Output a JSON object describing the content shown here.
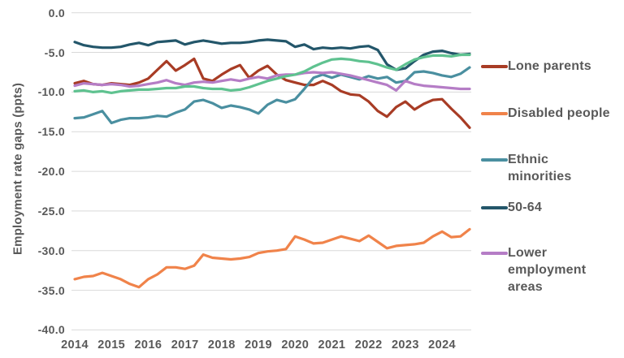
{
  "figure": {
    "y_axis_title": "Employment rate gaps (ppts)",
    "y_tick_labels": [
      "0.0",
      "-5.0",
      "-10.0",
      "-15.0",
      "-20.0",
      "-25.0",
      "-30.0",
      "-35.0",
      "-40.0"
    ],
    "x_tick_labels": [
      "2014",
      "2015",
      "2016",
      "2017",
      "2018",
      "2019",
      "2020",
      "2021",
      "2022",
      "2023",
      "2024"
    ],
    "grid_color": "#d9d9d9",
    "text_color": "#595959",
    "background_color": "#ffffff"
  },
  "legend": [
    {
      "label": "Lone parents",
      "color": "#a83c25"
    },
    {
      "label": "Disabled people",
      "color": "#f0834a"
    },
    {
      "label": "Ethnic minorities",
      "color": "#4a8fa0"
    },
    {
      "label": "50-64",
      "color": "#23566a"
    },
    {
      "label": "Lower employment areas",
      "color": "#b57dc6"
    }
  ],
  "chart_data": {
    "type": "line",
    "title": "",
    "xlabel": "",
    "ylabel": "Employment rate gaps (ppts)",
    "ylim": [
      -40,
      0
    ],
    "y_ticks": [
      0,
      -5,
      -10,
      -15,
      -20,
      -25,
      -30,
      -35,
      -40
    ],
    "grid": "horizontal",
    "legend_position": "right",
    "x_frequency": "quarterly",
    "categories": [
      "2014 Q1",
      "2014 Q2",
      "2014 Q3",
      "2014 Q4",
      "2015 Q1",
      "2015 Q2",
      "2015 Q3",
      "2015 Q4",
      "2016 Q1",
      "2016 Q2",
      "2016 Q3",
      "2016 Q4",
      "2017 Q1",
      "2017 Q2",
      "2017 Q3",
      "2017 Q4",
      "2018 Q1",
      "2018 Q2",
      "2018 Q3",
      "2018 Q4",
      "2019 Q1",
      "2019 Q2",
      "2019 Q3",
      "2019 Q4",
      "2020 Q1",
      "2020 Q2",
      "2020 Q3",
      "2020 Q4",
      "2021 Q1",
      "2021 Q2",
      "2021 Q3",
      "2021 Q4",
      "2022 Q1",
      "2022 Q2",
      "2022 Q3",
      "2022 Q4",
      "2023 Q1",
      "2023 Q2",
      "2023 Q3",
      "2023 Q4",
      "2024 Q1",
      "2024 Q2",
      "2024 Q3",
      "2024 Q4"
    ],
    "x_year_ticks": [
      2014,
      2015,
      2016,
      2017,
      2018,
      2019,
      2020,
      2021,
      2022,
      2023,
      2024
    ],
    "series": [
      {
        "name": "Lone parents",
        "color": "#a83c25",
        "values": [
          -8.9,
          -8.6,
          -9.0,
          -9.1,
          -8.9,
          -9.0,
          -9.1,
          -8.8,
          -8.3,
          -7.2,
          -6.1,
          -7.3,
          -6.6,
          -5.8,
          -8.3,
          -8.6,
          -7.8,
          -7.1,
          -6.6,
          -8.2,
          -7.3,
          -6.7,
          -7.8,
          -8.5,
          -8.8,
          -9.1,
          -9.1,
          -8.6,
          -9.1,
          -9.9,
          -10.3,
          -10.4,
          -11.2,
          -12.4,
          -13.1,
          -11.9,
          -11.2,
          -12.2,
          -11.5,
          -11.0,
          -10.9,
          -12.1,
          -13.2,
          -14.5
        ]
      },
      {
        "name": "Disabled people",
        "color": "#f0834a",
        "values": [
          -33.6,
          -33.3,
          -33.2,
          -32.8,
          -33.2,
          -33.6,
          -34.2,
          -34.6,
          -33.6,
          -33.0,
          -32.1,
          -32.1,
          -32.3,
          -31.9,
          -30.5,
          -30.9,
          -31.0,
          -31.1,
          -31.0,
          -30.8,
          -30.3,
          -30.1,
          -30.0,
          -29.8,
          -28.2,
          -28.6,
          -29.1,
          -29.0,
          -28.6,
          -28.2,
          -28.5,
          -28.8,
          -28.1,
          -28.9,
          -29.7,
          -29.4,
          -29.3,
          -29.2,
          -29.0,
          -28.2,
          -27.6,
          -28.3,
          -28.2,
          -27.3
        ]
      },
      {
        "name": "Ethnic minorities",
        "color": "#4a8fa0",
        "values": [
          -13.3,
          -13.2,
          -12.8,
          -12.4,
          -13.9,
          -13.5,
          -13.3,
          -13.3,
          -13.2,
          -13.0,
          -13.1,
          -12.6,
          -12.2,
          -11.2,
          -11.0,
          -11.4,
          -12.0,
          -11.7,
          -11.9,
          -12.2,
          -12.7,
          -11.6,
          -11.0,
          -11.3,
          -10.9,
          -9.6,
          -8.2,
          -7.8,
          -8.2,
          -7.8,
          -8.1,
          -8.4,
          -8.0,
          -8.3,
          -8.1,
          -8.8,
          -8.6,
          -7.5,
          -7.4,
          -7.6,
          -7.9,
          -8.1,
          -7.7,
          -6.9
        ]
      },
      {
        "name": "50-64",
        "color": "#23566a",
        "values": [
          -3.7,
          -4.1,
          -4.3,
          -4.4,
          -4.4,
          -4.3,
          -4.0,
          -3.8,
          -4.1,
          -3.7,
          -3.6,
          -3.5,
          -4.0,
          -3.7,
          -3.5,
          -3.7,
          -3.9,
          -3.8,
          -3.8,
          -3.7,
          -3.5,
          -3.4,
          -3.5,
          -3.6,
          -4.3,
          -4.0,
          -4.6,
          -4.4,
          -4.5,
          -4.4,
          -4.5,
          -4.3,
          -4.2,
          -4.7,
          -6.5,
          -7.2,
          -7.0,
          -6.1,
          -5.3,
          -4.9,
          -4.8,
          -5.1,
          -5.3,
          -5.2
        ]
      },
      {
        "name": "Lower employment areas",
        "color": "#b57dc6",
        "values": [
          -9.2,
          -8.9,
          -9.0,
          -9.1,
          -9.0,
          -9.1,
          -9.3,
          -9.2,
          -9.0,
          -8.8,
          -8.5,
          -8.9,
          -9.1,
          -8.8,
          -8.7,
          -8.8,
          -8.6,
          -8.4,
          -8.6,
          -8.3,
          -8.1,
          -8.3,
          -7.9,
          -7.8,
          -7.8,
          -7.6,
          -7.5,
          -7.6,
          -7.5,
          -7.7,
          -7.9,
          -8.2,
          -8.5,
          -8.8,
          -9.1,
          -9.8,
          -8.6,
          -9.0,
          -9.2,
          -9.3,
          -9.4,
          -9.5,
          -9.6,
          -9.6
        ]
      },
      {
        "name": "unlabelled series (green)",
        "color": "#5fc290",
        "values": [
          -9.9,
          -9.8,
          -10.0,
          -9.9,
          -10.1,
          -9.9,
          -9.8,
          -9.7,
          -9.7,
          -9.6,
          -9.5,
          -9.5,
          -9.3,
          -9.3,
          -9.5,
          -9.6,
          -9.6,
          -9.8,
          -9.7,
          -9.4,
          -9.0,
          -8.6,
          -8.3,
          -8.0,
          -7.8,
          -7.4,
          -6.8,
          -6.3,
          -5.9,
          -5.8,
          -5.9,
          -6.1,
          -6.2,
          -6.5,
          -6.9,
          -7.2,
          -6.5,
          -5.9,
          -5.6,
          -5.4,
          -5.4,
          -5.5,
          -5.3,
          -5.3
        ]
      }
    ]
  }
}
